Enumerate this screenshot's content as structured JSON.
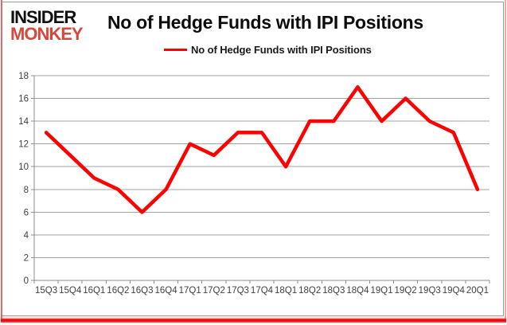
{
  "logo": {
    "line1": "INSIDER",
    "line2": "MONKEY",
    "line2_color": "#d5483b"
  },
  "header": {
    "title": "No of Hedge Funds with IPI Positions"
  },
  "legend": {
    "label": "No of Hedge Funds with IPI Positions",
    "color": "#ff0000"
  },
  "chart_data": {
    "type": "line",
    "title": "No of Hedge Funds with IPI Positions",
    "series": [
      {
        "name": "No of Hedge Funds with IPI Positions",
        "color": "#ff0000",
        "values": [
          13,
          11,
          9,
          8,
          6,
          8,
          12,
          11,
          13,
          13,
          10,
          14,
          14,
          17,
          14,
          16,
          14,
          13,
          8
        ]
      }
    ],
    "categories": [
      "15Q3",
      "15Q4",
      "16Q1",
      "16Q2",
      "16Q3",
      "16Q4",
      "17Q1",
      "17Q2",
      "17Q3",
      "17Q4",
      "18Q1",
      "18Q2",
      "18Q3",
      "18Q4",
      "19Q1",
      "19Q2",
      "19Q3",
      "19Q4",
      "20Q1"
    ],
    "yticks": [
      0,
      2,
      4,
      6,
      8,
      10,
      12,
      14,
      16,
      18
    ],
    "ylim": [
      0,
      18
    ],
    "xlabel": "",
    "ylabel": "",
    "grid": true,
    "grid_color": "#a3a3a3",
    "axis_color": "#8c8c8c",
    "tick_label_color": "#3f3f3f",
    "legend_position": "top"
  }
}
